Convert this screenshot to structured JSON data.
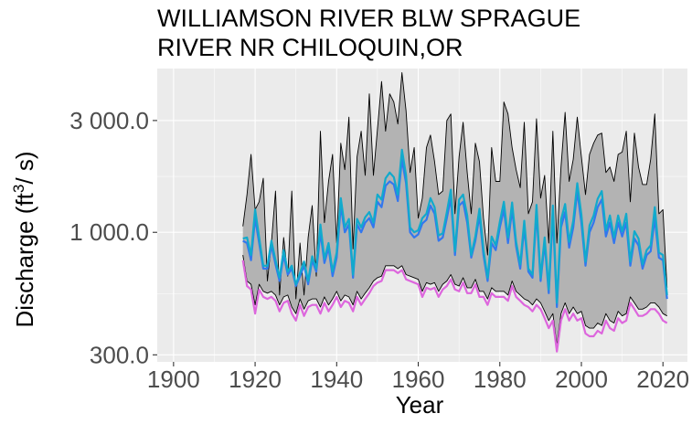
{
  "chart_data": {
    "type": "area",
    "title_line1": "WILLIAMSON RIVER BLW SPRAGUE",
    "title_line2": "RIVER NR CHILOQUIN,OR",
    "xlabel": "Year",
    "ylabel_prefix": "Discharge (ft",
    "ylabel_sup": "3",
    "ylabel_suffix": "/ s)",
    "y_scale": "log",
    "xlim": [
      1896,
      2026
    ],
    "ylim": [
      280,
      5000
    ],
    "xticks": [
      {
        "value": 1900,
        "label": "1900"
      },
      {
        "value": 1920,
        "label": "1920"
      },
      {
        "value": 1940,
        "label": "1940"
      },
      {
        "value": 1960,
        "label": "1960"
      },
      {
        "value": 1980,
        "label": "1980"
      },
      {
        "value": 2000,
        "label": "2000"
      },
      {
        "value": 2020,
        "label": "2020"
      }
    ],
    "yticks": [
      {
        "value": 300,
        "label": "300.0"
      },
      {
        "value": 1000,
        "label": "1 000.0"
      },
      {
        "value": 3000,
        "label": "3 000.0"
      }
    ],
    "grid": true,
    "legend": "none",
    "x": [
      1917,
      1918,
      1919,
      1920,
      1921,
      1922,
      1923,
      1924,
      1925,
      1926,
      1927,
      1928,
      1929,
      1930,
      1931,
      1932,
      1933,
      1934,
      1935,
      1936,
      1937,
      1938,
      1939,
      1940,
      1941,
      1942,
      1943,
      1944,
      1945,
      1946,
      1947,
      1948,
      1949,
      1950,
      1951,
      1952,
      1953,
      1954,
      1955,
      1956,
      1957,
      1958,
      1959,
      1960,
      1961,
      1962,
      1963,
      1964,
      1965,
      1966,
      1967,
      1968,
      1969,
      1970,
      1971,
      1972,
      1973,
      1974,
      1975,
      1976,
      1977,
      1978,
      1979,
      1980,
      1981,
      1982,
      1983,
      1984,
      1985,
      1986,
      1987,
      1988,
      1989,
      1990,
      1991,
      1992,
      1993,
      1994,
      1995,
      1996,
      1997,
      1998,
      1999,
      2000,
      2001,
      2002,
      2003,
      2004,
      2005,
      2006,
      2007,
      2008,
      2009,
      2010,
      2011,
      2012,
      2013,
      2014,
      2015,
      2016,
      2017,
      2018,
      2019,
      2020,
      2021
    ],
    "series": [
      {
        "role": "range_max",
        "color": "#000000",
        "values": [
          1060,
          1450,
          2150,
          1250,
          1350,
          1700,
          620,
          900,
          1500,
          540,
          950,
          650,
          1500,
          520,
          900,
          540,
          950,
          1300,
          650,
          2700,
          1100,
          1650,
          2150,
          900,
          2400,
          1850,
          3100,
          850,
          2100,
          2700,
          1750,
          3900,
          1750,
          2750,
          4400,
          2700,
          3900,
          3600,
          2900,
          4800,
          3300,
          1800,
          2300,
          1150,
          1400,
          2300,
          2600,
          2000,
          1450,
          1500,
          3000,
          3200,
          1200,
          2100,
          2950,
          1800,
          1200,
          2400,
          2000,
          1150,
          800,
          2300,
          1650,
          1650,
          3600,
          3200,
          2300,
          1850,
          1550,
          2950,
          1200,
          1350,
          3050,
          1400,
          1750,
          900,
          2700,
          900,
          1900,
          3250,
          1650,
          2050,
          3100,
          2100,
          1450,
          2150,
          2400,
          2600,
          2650,
          1800,
          1900,
          1650,
          2150,
          2200,
          2700,
          1350,
          2650,
          1900,
          1600,
          1600,
          2050,
          3200,
          1200,
          1250,
          580
        ]
      },
      {
        "role": "range_min",
        "color": "#000000",
        "values": [
          800,
          620,
          600,
          490,
          600,
          560,
          550,
          560,
          540,
          490,
          530,
          540,
          480,
          450,
          520,
          470,
          510,
          520,
          520,
          480,
          530,
          490,
          520,
          560,
          510,
          540,
          530,
          490,
          560,
          520,
          550,
          580,
          620,
          640,
          650,
          720,
          720,
          720,
          700,
          720,
          660,
          650,
          640,
          630,
          560,
          610,
          600,
          610,
          560,
          600,
          620,
          660,
          600,
          590,
          640,
          580,
          580,
          630,
          560,
          560,
          520,
          580,
          560,
          560,
          560,
          540,
          620,
          560,
          540,
          520,
          510,
          490,
          520,
          500,
          460,
          420,
          450,
          330,
          450,
          500,
          450,
          480,
          450,
          460,
          400,
          390,
          390,
          410,
          400,
          450,
          420,
          410,
          460,
          440,
          450,
          530,
          500,
          470,
          470,
          480,
          500,
          500,
          480,
          450,
          440
        ]
      },
      {
        "role": "lower_line",
        "color": "#dd66dd",
        "values": [
          760,
          590,
          570,
          450,
          570,
          530,
          520,
          530,
          510,
          460,
          500,
          510,
          450,
          420,
          490,
          440,
          480,
          490,
          490,
          450,
          500,
          460,
          490,
          530,
          480,
          510,
          500,
          460,
          530,
          490,
          520,
          550,
          590,
          610,
          620,
          690,
          690,
          690,
          670,
          690,
          630,
          620,
          610,
          600,
          530,
          580,
          570,
          580,
          530,
          570,
          590,
          630,
          570,
          560,
          610,
          550,
          550,
          600,
          530,
          530,
          490,
          550,
          530,
          530,
          530,
          510,
          590,
          530,
          510,
          490,
          480,
          460,
          490,
          470,
          430,
          390,
          420,
          310,
          420,
          470,
          420,
          450,
          420,
          430,
          370,
          360,
          360,
          380,
          370,
          420,
          390,
          380,
          430,
          410,
          420,
          500,
          470,
          440,
          440,
          450,
          470,
          470,
          450,
          420,
          410
        ]
      },
      {
        "role": "mid_line_1",
        "color": "#3377ee",
        "values": [
          920,
          900,
          760,
          1150,
          900,
          700,
          700,
          880,
          730,
          620,
          800,
          660,
          700,
          590,
          650,
          720,
          600,
          760,
          680,
          1000,
          740,
          860,
          650,
          780,
          1300,
          1000,
          1080,
          640,
          1080,
          1000,
          1100,
          1150,
          1050,
          1350,
          1280,
          1580,
          1650,
          1600,
          1360,
          2050,
          1620,
          1000,
          950,
          980,
          1090,
          1130,
          1300,
          1200,
          920,
          950,
          1150,
          1400,
          800,
          1300,
          1350,
          1100,
          780,
          920,
          1180,
          800,
          620,
          900,
          840,
          1050,
          1250,
          900,
          1250,
          870,
          700,
          1050,
          680,
          640,
          1220,
          620,
          900,
          550,
          1200,
          480,
          1050,
          1220,
          860,
          1050,
          1500,
          1100,
          720,
          1000,
          1100,
          1280,
          1380,
          960,
          1100,
          900,
          1100,
          960,
          1100,
          720,
          940,
          880,
          700,
          800,
          830,
          1150,
          780,
          760,
          520
        ]
      },
      {
        "role": "mid_line_2",
        "color": "#11aacc",
        "values": [
          940,
          950,
          800,
          1250,
          950,
          720,
          720,
          920,
          760,
          640,
          840,
          680,
          720,
          600,
          670,
          750,
          620,
          790,
          700,
          1080,
          770,
          900,
          680,
          820,
          1400,
          1050,
          1140,
          660,
          1140,
          1050,
          1160,
          1220,
          1100,
          1450,
          1380,
          1700,
          1800,
          1720,
          1450,
          2250,
          1750,
          1050,
          1000,
          1020,
          1150,
          1200,
          1400,
          1280,
          970,
          990,
          1220,
          1520,
          830,
          1380,
          1450,
          1180,
          800,
          960,
          1260,
          840,
          640,
          960,
          880,
          1110,
          1350,
          950,
          1340,
          910,
          730,
          1120,
          700,
          660,
          1310,
          640,
          950,
          570,
          1300,
          500,
          1130,
          1320,
          910,
          1120,
          1620,
          1190,
          750,
          1070,
          1180,
          1390,
          1500,
          1020,
          1180,
          950,
          1180,
          1010,
          1200,
          750,
          1010,
          940,
          730,
          840,
          880,
          1280,
          820,
          800,
          540
        ]
      }
    ]
  }
}
